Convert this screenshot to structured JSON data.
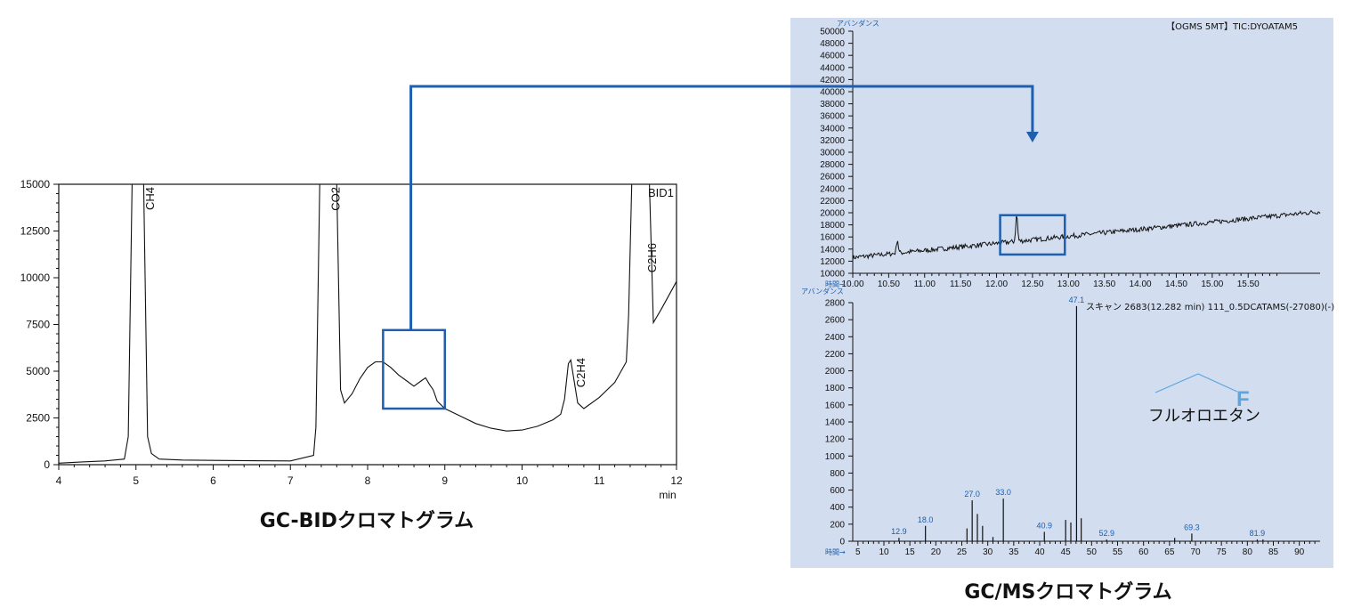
{
  "colors": {
    "panel_bg": "#d2ddef",
    "highlight": "#1f5fae",
    "trace": "#111111",
    "mz_label": "#1a5fb0",
    "molecule": "#5aa6e0"
  },
  "captions": {
    "left": "GC-BIDクロマトグラム",
    "right": "GC/MSクロマトグラム"
  },
  "chart_data": [
    {
      "id": "gc-bid",
      "type": "line",
      "title": "",
      "channel_label": "BID1",
      "xlabel": "min",
      "ylabel": "",
      "xlim": [
        4,
        12
      ],
      "ylim": [
        0,
        15000
      ],
      "x_ticks": [
        "4",
        "5",
        "6",
        "7",
        "8",
        "9",
        "10",
        "11",
        "12"
      ],
      "y_ticks": [
        "0",
        "2500",
        "5000",
        "7500",
        "10000",
        "12500",
        "15000"
      ],
      "peaks": [
        {
          "name": "CH4",
          "rt": 5.05
        },
        {
          "name": "CO2",
          "rt": 7.45
        },
        {
          "name": "C2H4",
          "rt": 10.63
        },
        {
          "name": "C2H6",
          "rt": 11.55
        }
      ],
      "series": [
        {
          "x": [
            4.0,
            4.3,
            4.6,
            4.85,
            4.9,
            4.95,
            5.0,
            5.1,
            5.15,
            5.2,
            5.3,
            5.6,
            6.0,
            6.5,
            7.0,
            7.3,
            7.33,
            7.38,
            7.42,
            7.6,
            7.65,
            7.7,
            7.8,
            7.9,
            8.0,
            8.1,
            8.2,
            8.3,
            8.4,
            8.5,
            8.6,
            8.7,
            8.75,
            8.8,
            8.85,
            8.9,
            9.0,
            9.2,
            9.4,
            9.6,
            9.8,
            10.0,
            10.2,
            10.4,
            10.5,
            10.55,
            10.6,
            10.63,
            10.67,
            10.72,
            10.8,
            11.0,
            11.2,
            11.35,
            11.38,
            11.42,
            11.65,
            11.7,
            11.8,
            12.0
          ],
          "y": [
            80,
            150,
            200,
            300,
            1500,
            15000,
            15000,
            15000,
            1500,
            600,
            300,
            250,
            230,
            210,
            200,
            500,
            2000,
            15000,
            15000,
            15000,
            4000,
            3300,
            3800,
            4600,
            5200,
            5500,
            5500,
            5200,
            4800,
            4500,
            4200,
            4500,
            4650,
            4300,
            4000,
            3400,
            3000,
            2600,
            2200,
            1950,
            1800,
            1850,
            2050,
            2400,
            2700,
            3500,
            5400,
            5600,
            4600,
            3300,
            3000,
            3600,
            4400,
            5500,
            8000,
            15000,
            15000,
            7600,
            8300,
            9800
          ]
        }
      ],
      "highlight_box": {
        "x": [
          8.2,
          9.0
        ],
        "y": [
          3000,
          7200
        ]
      }
    },
    {
      "id": "gcms-tic",
      "type": "line",
      "title": "【OGMS 5MT】TIC:DYOATAM5",
      "xlabel": "時間→",
      "ylabel": "アバンダンス",
      "xlim": [
        10.0,
        16.5
      ],
      "ylim": [
        10000,
        50000
      ],
      "x_ticks": [
        "10.00",
        "10.50",
        "11.00",
        "11.50",
        "12.00",
        "12.50",
        "13.00",
        "13.50",
        "14.00",
        "14.50",
        "15.00",
        "15.50"
      ],
      "y_ticks": [
        "10000",
        "12000",
        "14000",
        "16000",
        "18000",
        "20000",
        "22000",
        "24000",
        "26000",
        "28000",
        "30000",
        "32000",
        "34000",
        "36000",
        "38000",
        "40000",
        "42000",
        "44000",
        "46000",
        "48000",
        "50000"
      ],
      "spikes": [
        {
          "x": 10.62,
          "y": 15600
        },
        {
          "x": 12.28,
          "y": 19700
        }
      ],
      "baseline": {
        "start": 12600,
        "end": 20200
      },
      "highlight_box": {
        "x": [
          12.05,
          12.95
        ],
        "y": [
          13100,
          19600
        ]
      }
    },
    {
      "id": "mass-spectrum",
      "type": "bar",
      "title": "スキャン 2683(12.282 min) 111_0.5DCATAMS(-27080)(-)",
      "xlabel": "時間→",
      "ylabel": "アバンダンス",
      "xlim": [
        4,
        94
      ],
      "ylim": [
        0,
        2800
      ],
      "x_ticks": [
        "5",
        "10",
        "15",
        "20",
        "25",
        "30",
        "35",
        "40",
        "45",
        "50",
        "55",
        "60",
        "65",
        "70",
        "75",
        "80",
        "85",
        "90"
      ],
      "y_ticks": [
        "0",
        "200",
        "400",
        "600",
        "800",
        "1000",
        "1200",
        "1400",
        "1600",
        "1800",
        "2000",
        "2200",
        "2400",
        "2600",
        "2800"
      ],
      "peaks": [
        {
          "mz": 12.9,
          "intensity": 40,
          "label": "12.9"
        },
        {
          "mz": 18.0,
          "intensity": 180,
          "label": "18.0"
        },
        {
          "mz": 26.0,
          "intensity": 150
        },
        {
          "mz": 27.0,
          "intensity": 480,
          "label": "27.0"
        },
        {
          "mz": 28.0,
          "intensity": 320
        },
        {
          "mz": 29.0,
          "intensity": 180
        },
        {
          "mz": 31.0,
          "intensity": 50
        },
        {
          "mz": 33.0,
          "intensity": 500,
          "label": "33.0"
        },
        {
          "mz": 40.9,
          "intensity": 110,
          "label": "40.9"
        },
        {
          "mz": 45.0,
          "intensity": 250
        },
        {
          "mz": 46.0,
          "intensity": 220
        },
        {
          "mz": 47.1,
          "intensity": 2760,
          "label": "47.1"
        },
        {
          "mz": 48.0,
          "intensity": 270
        },
        {
          "mz": 52.9,
          "intensity": 20,
          "label": "52.9"
        },
        {
          "mz": 66.0,
          "intensity": 40
        },
        {
          "mz": 69.3,
          "intensity": 90,
          "label": "69.3"
        },
        {
          "mz": 81.9,
          "intensity": 20,
          "label": "81.9"
        },
        {
          "mz": 83.0,
          "intensity": 20
        }
      ],
      "molecule": {
        "atom": "F",
        "name": "フルオロエタン"
      }
    }
  ]
}
